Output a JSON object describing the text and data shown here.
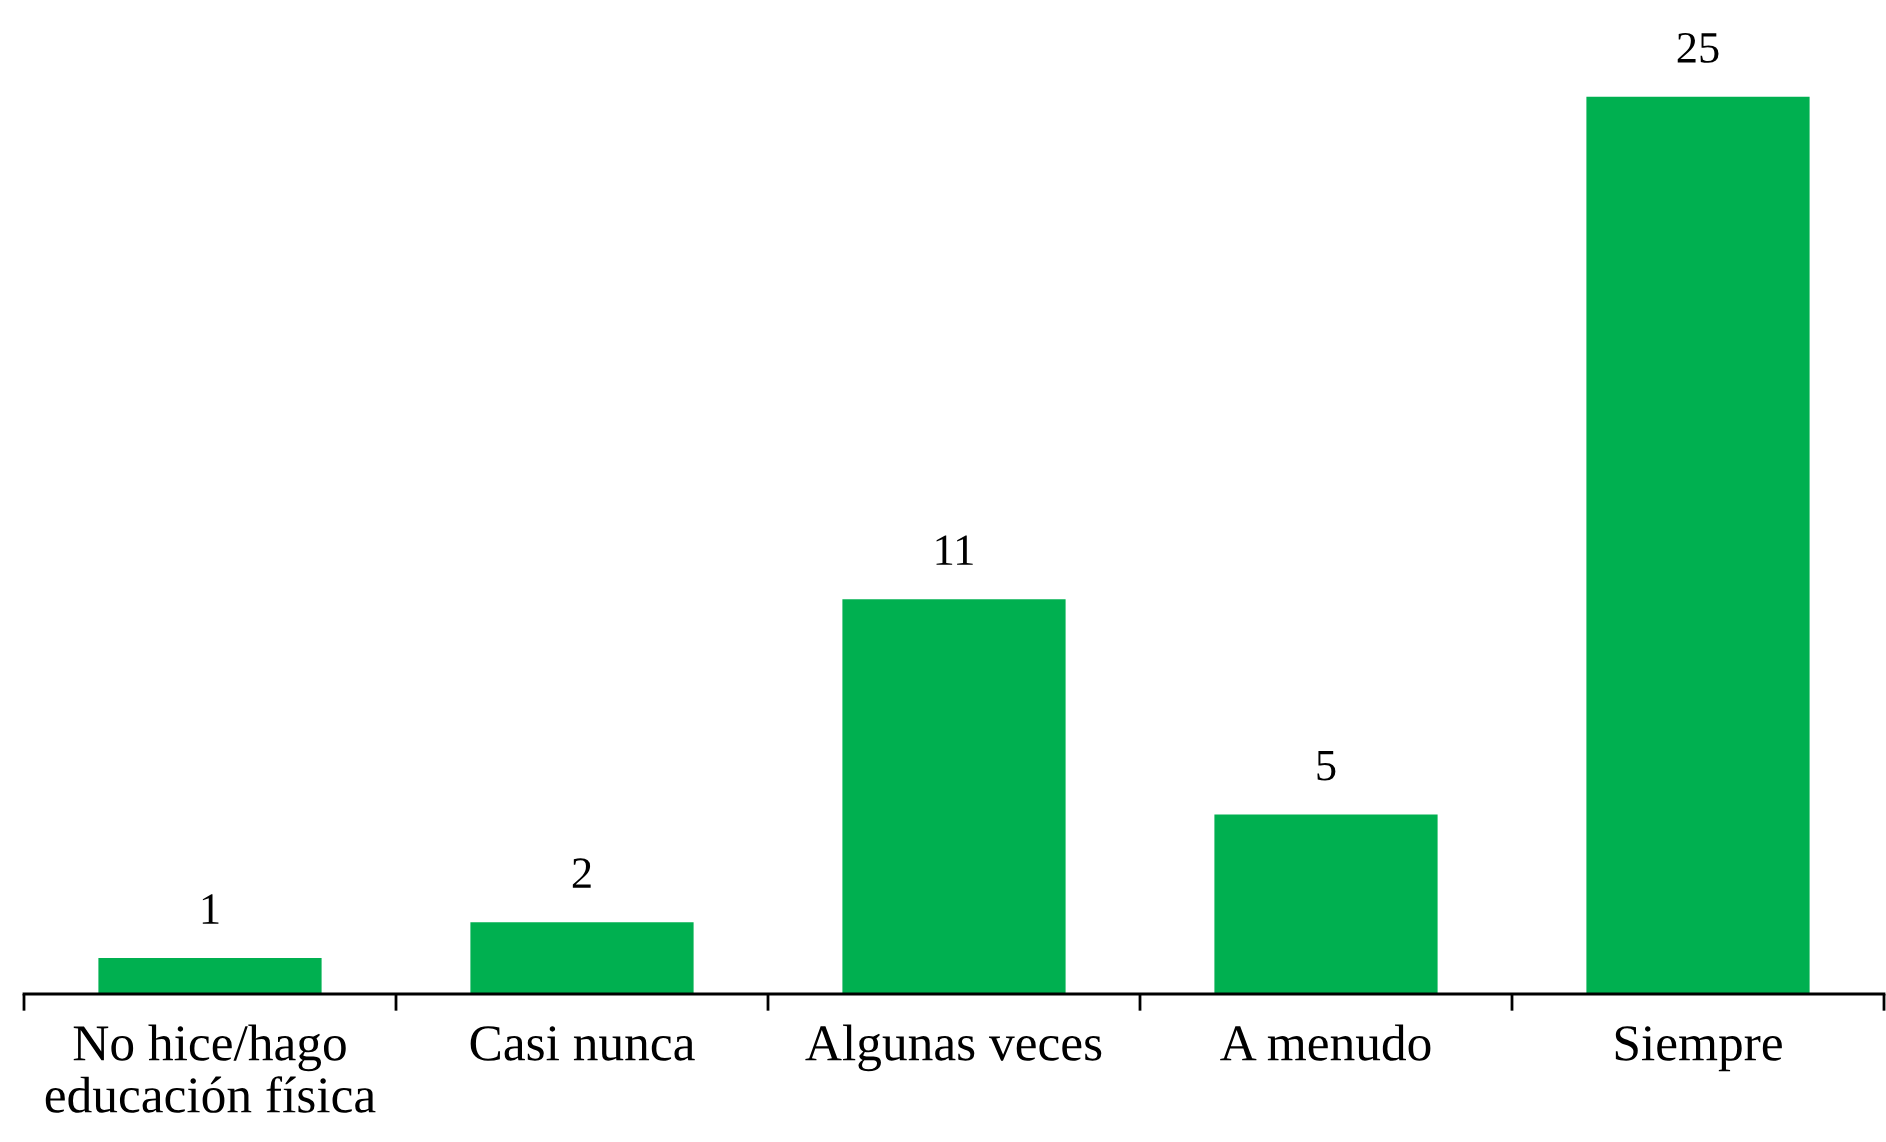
{
  "chart_data": {
    "type": "bar",
    "categories": [
      "No hice/hago\neducación física",
      "Casi nunca",
      "Algunas veces",
      "A menudo",
      "Siempre"
    ],
    "values": [
      1,
      2,
      11,
      5,
      25
    ],
    "color": "#00b050",
    "data_labels": true
  }
}
